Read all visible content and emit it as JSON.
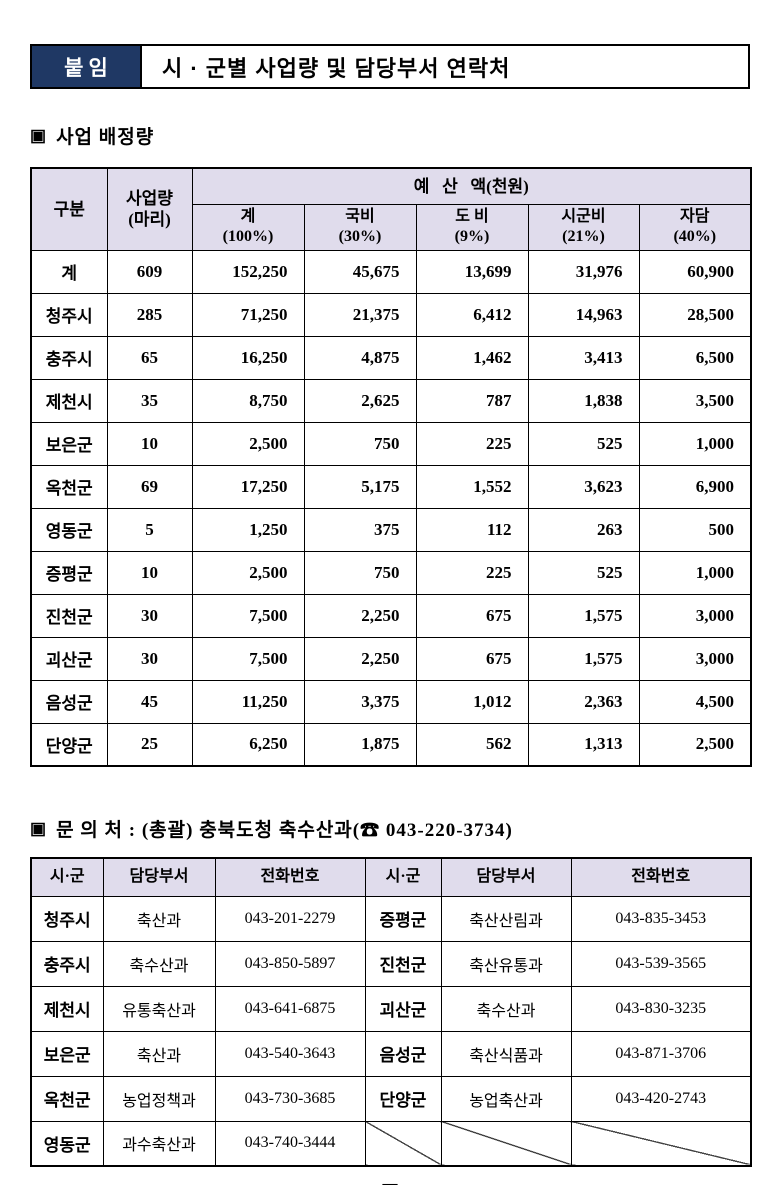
{
  "header": {
    "badge": "붙임",
    "title": "시 · 군별 사업량 및 담당부서 연락처"
  },
  "sections": {
    "allocation": {
      "bullet": "▣",
      "heading": "사업 배정량",
      "table": {
        "headers": {
          "gubun": "구분",
          "amount": "사업량\n(마리)",
          "budget_group": "예   산   액(천원)",
          "sub": [
            "계\n(100%)",
            "국비\n(30%)",
            "도 비\n(9%)",
            "시군비\n(21%)",
            "자담\n(40%)"
          ]
        },
        "rows": [
          [
            "계",
            "609",
            "152,250",
            "45,675",
            "13,699",
            "31,976",
            "60,900"
          ],
          [
            "청주시",
            "285",
            "71,250",
            "21,375",
            "6,412",
            "14,963",
            "28,500"
          ],
          [
            "충주시",
            "65",
            "16,250",
            "4,875",
            "1,462",
            "3,413",
            "6,500"
          ],
          [
            "제천시",
            "35",
            "8,750",
            "2,625",
            "787",
            "1,838",
            "3,500"
          ],
          [
            "보은군",
            "10",
            "2,500",
            "750",
            "225",
            "525",
            "1,000"
          ],
          [
            "옥천군",
            "69",
            "17,250",
            "5,175",
            "1,552",
            "3,623",
            "6,900"
          ],
          [
            "영동군",
            "5",
            "1,250",
            "375",
            "112",
            "263",
            "500"
          ],
          [
            "증평군",
            "10",
            "2,500",
            "750",
            "225",
            "525",
            "1,000"
          ],
          [
            "진천군",
            "30",
            "7,500",
            "2,250",
            "675",
            "1,575",
            "3,000"
          ],
          [
            "괴산군",
            "30",
            "7,500",
            "2,250",
            "675",
            "1,575",
            "3,000"
          ],
          [
            "음성군",
            "45",
            "11,250",
            "3,375",
            "1,012",
            "2,363",
            "4,500"
          ],
          [
            "단양군",
            "25",
            "6,250",
            "1,875",
            "562",
            "1,313",
            "2,500"
          ]
        ]
      }
    },
    "contacts": {
      "bullet": "▣",
      "heading": "문 의 처 : (총괄) 충북도청 축수산과(☎ 043-220-3734)",
      "table": {
        "headers": [
          "시·군",
          "담당부서",
          "전화번호",
          "시·군",
          "담당부서",
          "전화번호"
        ],
        "rows": [
          [
            "청주시",
            "축산과",
            "043-201-2279",
            "증평군",
            "축산산림과",
            "043-835-3453"
          ],
          [
            "충주시",
            "축수산과",
            "043-850-5897",
            "진천군",
            "축산유통과",
            "043-539-3565"
          ],
          [
            "제천시",
            "유통축산과",
            "043-641-6875",
            "괴산군",
            "축수산과",
            "043-830-3235"
          ],
          [
            "보은군",
            "축산과",
            "043-540-3643",
            "음성군",
            "축산식품과",
            "043-871-3706"
          ],
          [
            "옥천군",
            "농업정책과",
            "043-730-3685",
            "단양군",
            "농업축산과",
            "043-420-2743"
          ],
          [
            "영동군",
            "과수축산과",
            "043-740-3444",
            null,
            null,
            null
          ]
        ]
      }
    }
  },
  "footer": {
    "page_mark": "—"
  },
  "colors": {
    "badge_bg": "#1f3864",
    "header_bg": "#e0dcec",
    "border": "#000000"
  }
}
